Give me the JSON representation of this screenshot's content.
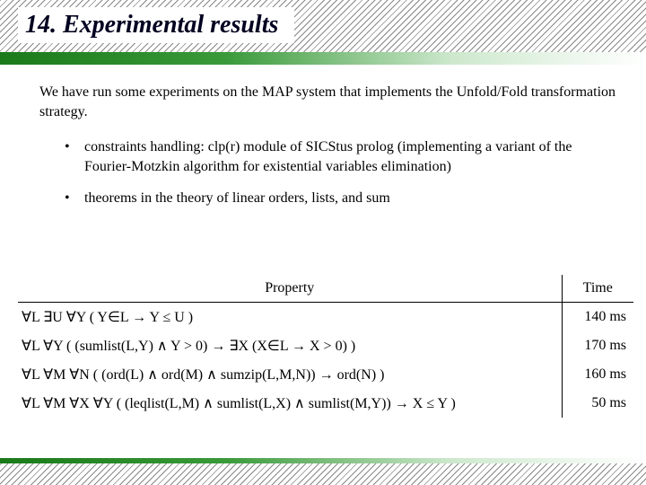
{
  "title": "14. Experimental results",
  "intro": "We have run some experiments on the MAP system that implements the Unfold/Fold transformation strategy.",
  "bullets": [
    "constraints handling: clp(r) module of SICStus prolog (implementing a variant of the Fourier-Motzkin algorithm for existential variables elimination)",
    "theorems in the theory of linear orders, lists, and sum"
  ],
  "table": {
    "header_property": "Property",
    "header_time": "Time",
    "rows": [
      {
        "property": "∀L ∃U ∀Y ( Y∈L → Y ≤ U )",
        "time": "140 ms"
      },
      {
        "property": "∀L ∀Y ( (sumlist(L,Y) ∧ Y > 0) → ∃X (X∈L → X > 0) )",
        "time": "170 ms"
      },
      {
        "property": "∀L ∀M ∀N ( (ord(L) ∧ ord(M) ∧ sumzip(L,M,N)) → ord(N) )",
        "time": "160 ms"
      },
      {
        "property": "∀L ∀M ∀X ∀Y ( (leqlist(L,M) ∧ sumlist(L,X) ∧ sumlist(M,Y)) → X ≤ Y )",
        "time": "50 ms"
      }
    ]
  }
}
